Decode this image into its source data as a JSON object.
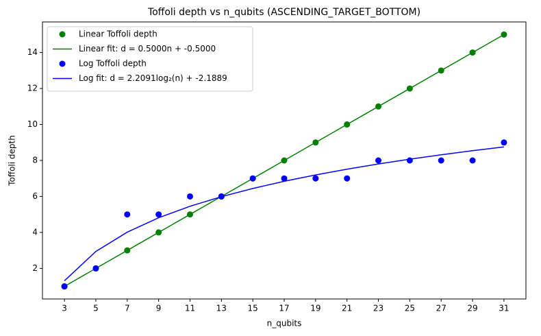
{
  "chart_data": {
    "type": "line",
    "title": "Toffoli depth vs n_qubits (ASCENDING_TARGET_BOTTOM)",
    "x_label": "n_qubits",
    "y_label": "Toffoli depth",
    "x": [
      3,
      5,
      7,
      9,
      11,
      13,
      15,
      17,
      19,
      21,
      23,
      25,
      27,
      29,
      31
    ],
    "series": [
      {
        "name": "Linear Toffoli depth",
        "color": "#008000",
        "style": "markers",
        "values": [
          1,
          2,
          3,
          4,
          5,
          6,
          7,
          8,
          9,
          10,
          11,
          12,
          13,
          14,
          15
        ]
      },
      {
        "name": "Linear fit: d = 0.5000n + -0.5000",
        "color": "#008000",
        "style": "line",
        "values": [
          1,
          2,
          3,
          4,
          5,
          6,
          7,
          8,
          9,
          10,
          11,
          12,
          13,
          14,
          15
        ]
      },
      {
        "name": "Log Toffoli depth",
        "color": "#0000ff",
        "style": "markers",
        "values": [
          1,
          2,
          5,
          5,
          6,
          6,
          7,
          7,
          7,
          7,
          8,
          8,
          8,
          8,
          9
        ]
      },
      {
        "name": "Log fit: d = 2.2091log₂(n) + -2.1889",
        "color": "#0000ff",
        "style": "line",
        "values": [
          1.313,
          2.94,
          4.013,
          4.814,
          5.453,
          5.986,
          6.442,
          6.841,
          7.195,
          7.514,
          7.804,
          8.07,
          8.315,
          8.543,
          8.755
        ]
      }
    ],
    "xlim": [
      1.6,
      32.4
    ],
    "ylim": [
      0.3,
      15.7
    ],
    "xticks": [
      3,
      5,
      7,
      9,
      11,
      13,
      15,
      17,
      19,
      21,
      23,
      25,
      27,
      29,
      31
    ],
    "yticks": [
      2,
      4,
      6,
      8,
      10,
      12,
      14
    ],
    "grid": false,
    "legend": "upper-left"
  }
}
